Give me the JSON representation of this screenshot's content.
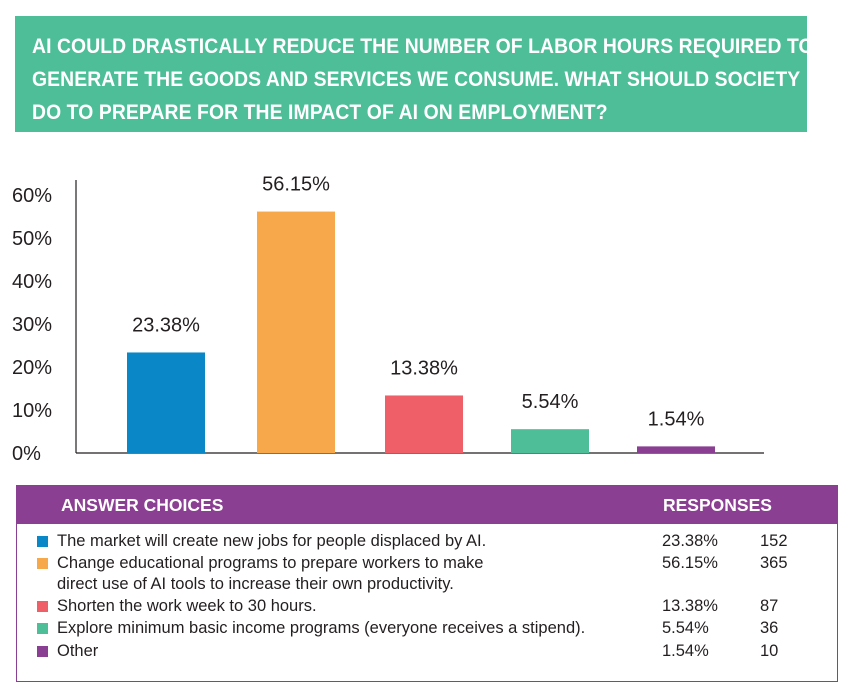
{
  "title_lines": [
    "AI COULD DRASTICALLY REDUCE THE NUMBER OF LABOR HOURS REQUIRED TO",
    "GENERATE THE GOODS AND SERVICES WE CONSUME. WHAT SHOULD SOCIETY",
    "DO TO PREPARE FOR THE IMPACT OF AI ON EMPLOYMENT?"
  ],
  "colors": {
    "banner": "#4dbe98",
    "table_header": "#8b3f92",
    "axis": "#231f20"
  },
  "chart_data": {
    "type": "bar",
    "categories": [
      "The market will create new jobs for people displaced by AI.",
      "Change educational programs to prepare workers to make direct use of AI tools to increase their own productivity.",
      "Shorten the work week to 30 hours.",
      "Explore minimum basic income programs (everyone receives a stipend).",
      "Other"
    ],
    "values": [
      23.38,
      56.15,
      13.38,
      5.54,
      1.54
    ],
    "data_labels": [
      "23.38%",
      "56.15%",
      "13.38%",
      "5.54%",
      "1.54%"
    ],
    "colors": [
      "#0a87c6",
      "#f7a84a",
      "#ef5f68",
      "#4dbe98",
      "#8b3f92"
    ],
    "ylim": [
      0,
      60
    ],
    "yticks": [
      0,
      10,
      20,
      30,
      40,
      50,
      60
    ],
    "ytick_labels": [
      "0%",
      "10%",
      "20%",
      "30%",
      "40%",
      "50%",
      "60%"
    ],
    "grid": false,
    "legend": "table below chart"
  },
  "table": {
    "header_choices": "ANSWER CHOICES",
    "header_responses": "RESPONSES",
    "rows": [
      {
        "lines": [
          "The market will create new jobs for people displaced by AI."
        ],
        "percent": "23.38%",
        "count": "152",
        "color": "#0a87c6"
      },
      {
        "lines": [
          "Change educational programs to prepare workers to make",
          "direct use of AI tools to increase their own productivity."
        ],
        "percent": "56.15%",
        "count": "365",
        "color": "#f7a84a"
      },
      {
        "lines": [
          "Shorten the work week to 30 hours."
        ],
        "percent": "13.38%",
        "count": "87",
        "color": "#ef5f68"
      },
      {
        "lines": [
          "Explore minimum basic income programs (everyone receives a stipend)."
        ],
        "percent": "5.54%",
        "count": "36",
        "color": "#4dbe98"
      },
      {
        "lines": [
          "Other"
        ],
        "percent": "1.54%",
        "count": "10",
        "color": "#8b3f92"
      }
    ]
  }
}
